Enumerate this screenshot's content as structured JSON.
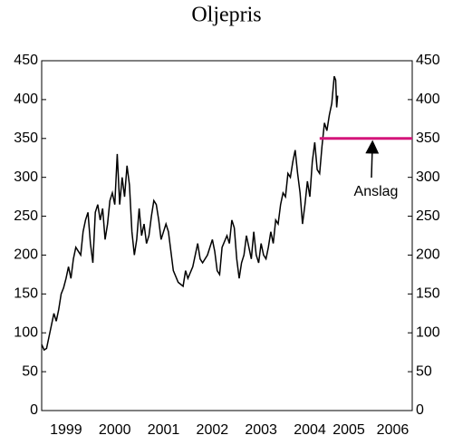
{
  "chart_data": {
    "type": "line",
    "title": "Oljepris",
    "xlim": [
      1999,
      2006.6
    ],
    "xticks": [
      {
        "value": 1999.5,
        "label": "1999"
      },
      {
        "value": 2000.5,
        "label": "2000"
      },
      {
        "value": 2001.5,
        "label": "2001"
      },
      {
        "value": 2002.5,
        "label": "2002"
      },
      {
        "value": 2003.5,
        "label": "2003"
      },
      {
        "value": 2004.5,
        "label": "2004"
      },
      {
        "value": 2005.3,
        "label": "2005"
      },
      {
        "value": 2006.2,
        "label": "2006"
      }
    ],
    "ylim": [
      0,
      450
    ],
    "yticks": [
      0,
      50,
      100,
      150,
      200,
      250,
      300,
      350,
      400,
      450
    ],
    "y2lim": [
      0,
      450
    ],
    "y2ticks": [
      0,
      50,
      100,
      150,
      200,
      250,
      300,
      350,
      400,
      450
    ],
    "annotation": "Anslag",
    "series": [
      {
        "color": "#000000",
        "x": [
          1999.0,
          1999.05,
          1999.1,
          1999.15,
          1999.2,
          1999.25,
          1999.3,
          1999.35,
          1999.4,
          1999.45,
          1999.5,
          1999.55,
          1999.6,
          1999.65,
          1999.7,
          1999.75,
          1999.8,
          1999.85,
          1999.9,
          1999.95,
          2000.0,
          2000.05,
          2000.1,
          2000.15,
          2000.2,
          2000.25,
          2000.3,
          2000.35,
          2000.4,
          2000.45,
          2000.5,
          2000.55,
          2000.6,
          2000.65,
          2000.7,
          2000.75,
          2000.8,
          2000.85,
          2000.9,
          2000.95,
          2001.0,
          2001.05,
          2001.1,
          2001.15,
          2001.2,
          2001.25,
          2001.3,
          2001.35,
          2001.4,
          2001.45,
          2001.5,
          2001.55,
          2001.6,
          2001.7,
          2001.8,
          2001.9,
          2001.95,
          2002.0,
          2002.1,
          2002.2,
          2002.25,
          2002.3,
          2002.4,
          2002.5,
          2002.55,
          2002.6,
          2002.65,
          2002.7,
          2002.8,
          2002.85,
          2002.9,
          2002.95,
          2003.0,
          2003.05,
          2003.1,
          2003.15,
          2003.2,
          2003.25,
          2003.3,
          2003.35,
          2003.4,
          2003.45,
          2003.5,
          2003.55,
          2003.6,
          2003.65,
          2003.7,
          2003.75,
          2003.8,
          2003.85,
          2003.9,
          2003.95,
          2004.0,
          2004.05,
          2004.1,
          2004.15,
          2004.2,
          2004.25,
          2004.3,
          2004.35,
          2004.4,
          2004.45,
          2004.5,
          2004.55,
          2004.6,
          2004.65,
          2004.7,
          2004.75,
          2004.8,
          2004.85,
          2004.9,
          2004.95,
          2005.0,
          2005.03,
          2005.05,
          2005.07
        ],
        "values": [
          85,
          78,
          80,
          95,
          110,
          125,
          115,
          130,
          150,
          158,
          170,
          185,
          170,
          195,
          210,
          205,
          200,
          230,
          245,
          255,
          215,
          190,
          255,
          265,
          245,
          260,
          220,
          240,
          270,
          280,
          265,
          330,
          265,
          300,
          275,
          315,
          290,
          230,
          200,
          220,
          260,
          225,
          240,
          215,
          225,
          250,
          270,
          265,
          245,
          220,
          230,
          240,
          230,
          180,
          165,
          160,
          180,
          170,
          185,
          215,
          195,
          190,
          200,
          220,
          205,
          180,
          175,
          210,
          225,
          215,
          245,
          235,
          195,
          170,
          190,
          200,
          225,
          210,
          195,
          230,
          200,
          190,
          215,
          200,
          195,
          210,
          230,
          215,
          245,
          240,
          265,
          280,
          275,
          305,
          300,
          320,
          335,
          305,
          280,
          240,
          265,
          295,
          275,
          320,
          345,
          310,
          305,
          340,
          370,
          360,
          380,
          395,
          430,
          425,
          390,
          405
        ]
      },
      {
        "color": "#d4157a",
        "x": [
          2004.7,
          2006.6
        ],
        "values": [
          350,
          350
        ]
      }
    ]
  }
}
